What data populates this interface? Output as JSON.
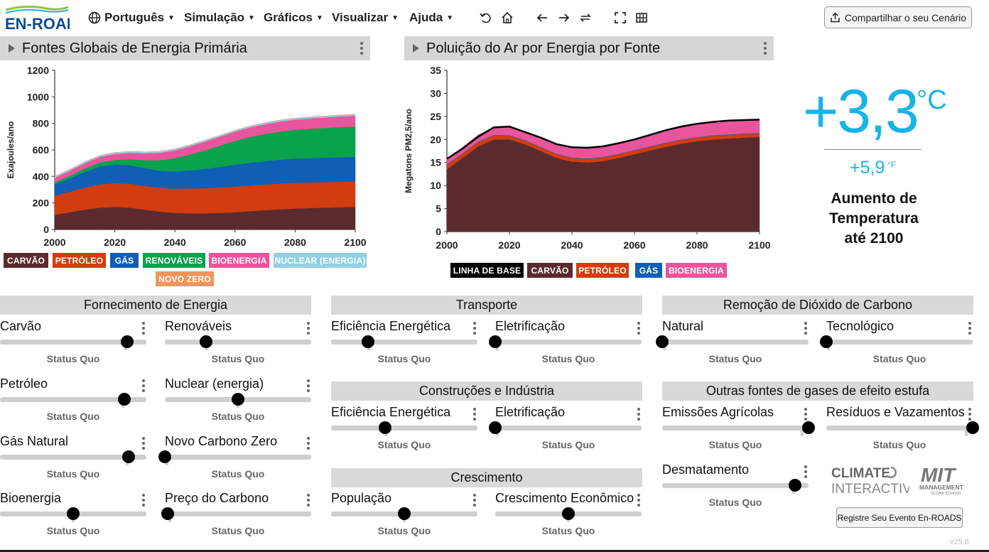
{
  "header": {
    "logo_text": "EN-ROADS",
    "menus": [
      {
        "label": "Português"
      },
      {
        "label": "Simulação"
      },
      {
        "label": "Gráficos"
      },
      {
        "label": "Visualizar"
      },
      {
        "label": "Ajuda"
      }
    ],
    "share_label": "Compartilhar o seu Cenário",
    "icons": [
      "globe-icon",
      "undo-icon",
      "home-icon",
      "back-arrow-icon",
      "forward-arrow-icon",
      "compare-icon",
      "fullscreen-icon",
      "grid-icon",
      "share-icon"
    ]
  },
  "graph1": {
    "title": "Fontes Globais de Energia Primária",
    "chart_data": {
      "type": "area",
      "ylabel": "Exajoules/ano",
      "x": [
        2000,
        2005,
        2010,
        2015,
        2020,
        2025,
        2030,
        2035,
        2040,
        2045,
        2050,
        2055,
        2060,
        2065,
        2070,
        2075,
        2080,
        2085,
        2090,
        2095,
        2100
      ],
      "xticks": [
        "2000",
        "2020",
        "2040",
        "2060",
        "2080",
        "2100"
      ],
      "yticks": [
        "0",
        "200",
        "400",
        "600",
        "800",
        "1000",
        "1200"
      ],
      "ylim": [
        0,
        1200
      ],
      "series": [
        {
          "name": "CARVÃO",
          "color": "#5b2a2e",
          "values": [
            110,
            130,
            150,
            165,
            170,
            165,
            150,
            135,
            125,
            122,
            122,
            125,
            130,
            138,
            145,
            152,
            158,
            162,
            165,
            168,
            170
          ]
        },
        {
          "name": "PETRÓLEO",
          "color": "#d13d0e",
          "values": [
            145,
            155,
            165,
            175,
            180,
            180,
            178,
            178,
            182,
            188,
            190,
            192,
            193,
            195,
            195,
            195,
            194,
            193,
            192,
            192,
            192
          ]
        },
        {
          "name": "GÁS",
          "color": "#0e5fb5",
          "values": [
            85,
            100,
            120,
            135,
            140,
            140,
            135,
            130,
            130,
            135,
            145,
            155,
            165,
            170,
            175,
            180,
            182,
            183,
            184,
            185,
            186
          ]
        },
        {
          "name": "RENOVÁVEIS",
          "color": "#0aa24a",
          "values": [
            15,
            20,
            25,
            30,
            35,
            45,
            60,
            80,
            100,
            120,
            140,
            160,
            180,
            195,
            205,
            212,
            218,
            222,
            225,
            228,
            230
          ]
        },
        {
          "name": "BIOENERGIA",
          "color": "#e8559c",
          "values": [
            35,
            38,
            40,
            42,
            45,
            48,
            52,
            56,
            60,
            63,
            66,
            68,
            70,
            72,
            74,
            76,
            77,
            78,
            79,
            80,
            80
          ]
        },
        {
          "name": "NUCLEAR (ENERGIA)",
          "color": "#8fd0e4",
          "values": [
            10,
            10,
            10,
            10,
            10,
            10,
            10,
            10,
            10,
            10,
            10,
            10,
            10,
            10,
            10,
            10,
            10,
            10,
            10,
            10,
            10
          ]
        },
        {
          "name": "NOVO ZERO",
          "color": "#f0955b",
          "values": [
            0,
            0,
            0,
            0,
            0,
            0,
            0,
            0,
            0,
            0,
            0,
            0,
            0,
            0,
            0,
            0,
            0,
            0,
            0,
            0,
            0
          ]
        }
      ]
    }
  },
  "graph2": {
    "title": "Poluição do Ar por Energia por Fonte",
    "chart_data": {
      "type": "area",
      "ylabel": "Megatons PM2,5/ano",
      "x": [
        2000,
        2005,
        2010,
        2015,
        2020,
        2025,
        2030,
        2035,
        2040,
        2045,
        2050,
        2055,
        2060,
        2065,
        2070,
        2075,
        2080,
        2085,
        2090,
        2095,
        2100
      ],
      "xticks": [
        "2000",
        "2020",
        "2040",
        "2060",
        "2080",
        "2100"
      ],
      "yticks": [
        "0",
        "5",
        "10",
        "15",
        "20",
        "25",
        "30",
        "35"
      ],
      "ylim": [
        0,
        35
      ],
      "baseline": {
        "name": "LINHA DE BASE",
        "color": "#000000",
        "values": [
          15.8,
          18.0,
          20.6,
          22.6,
          22.8,
          21.6,
          20.4,
          19.0,
          18.3,
          18.2,
          18.5,
          19.2,
          20.0,
          21.0,
          22.0,
          22.8,
          23.4,
          23.8,
          24.1,
          24.2,
          24.3
        ]
      },
      "series": [
        {
          "name": "CARVÃO",
          "color": "#5b2a2e",
          "values": [
            13.5,
            16.0,
            18.5,
            20.0,
            20.0,
            19.0,
            17.5,
            16.0,
            15.2,
            15.0,
            15.3,
            16.0,
            16.8,
            17.6,
            18.4,
            19.1,
            19.6,
            20.0,
            20.2,
            20.4,
            20.5
          ]
        },
        {
          "name": "PETRÓLEO",
          "color": "#d13d0e",
          "values": [
            1.0,
            0.9,
            0.9,
            0.9,
            0.8,
            0.8,
            0.8,
            0.8,
            0.8,
            0.8,
            0.8,
            0.8,
            0.8,
            0.8,
            0.8,
            0.8,
            0.8,
            0.8,
            0.8,
            0.8,
            0.8
          ]
        },
        {
          "name": "GÁS",
          "color": "#0e5fb5",
          "values": [
            0.1,
            0.1,
            0.1,
            0.1,
            0.1,
            0.1,
            0.1,
            0.1,
            0.1,
            0.1,
            0.1,
            0.1,
            0.1,
            0.1,
            0.1,
            0.1,
            0.1,
            0.1,
            0.1,
            0.1,
            0.1
          ]
        },
        {
          "name": "BIOENERGIA",
          "color": "#e8559c",
          "values": [
            1.2,
            1.3,
            1.5,
            1.6,
            1.9,
            1.7,
            2.0,
            2.1,
            2.2,
            2.3,
            2.3,
            2.3,
            2.3,
            2.6,
            2.7,
            2.8,
            3.0,
            2.9,
            3.0,
            2.9,
            2.9
          ]
        }
      ]
    }
  },
  "temperature": {
    "value_c": "+3,3",
    "unit_c": "°C",
    "value_f": "+5,9",
    "unit_f": "°F",
    "label": "Aumento de Temperatura até 2100"
  },
  "sections": {
    "supply": "Fornecimento de Energia",
    "transport": "Transporte",
    "buildings": "Construções e Indústria",
    "growth": "Crescimento",
    "removal": "Remoção de Dióxido de Carbono",
    "other_gases": "Outras fontes de gases de efeito estufa"
  },
  "controls": {
    "coal": {
      "label": "Carvão",
      "status": "Status Quo",
      "position": 0.87
    },
    "renewables": {
      "label": "Renováveis",
      "status": "Status Quo",
      "position": 0.28
    },
    "oil": {
      "label": "Petróleo",
      "status": "Status Quo",
      "position": 0.85
    },
    "nuclear": {
      "label": "Nuclear (energia)",
      "status": "Status Quo",
      "position": 0.5
    },
    "natural_gas": {
      "label": "Gás Natural",
      "status": "Status Quo",
      "position": 0.88
    },
    "new_zero_carbon": {
      "label": "Novo Carbono Zero",
      "status": "Status Quo",
      "position": 0.0
    },
    "bioenergy": {
      "label": "Bioenergia",
      "status": "Status Quo",
      "position": 0.5
    },
    "carbon_price": {
      "label": "Preço do Carbono",
      "status": "Status Quo",
      "position": 0.02
    },
    "transport_efficiency": {
      "label": "Eficiência Energética",
      "status": "Status Quo",
      "position": 0.25
    },
    "transport_electrification": {
      "label": "Eletrificação",
      "status": "Status Quo",
      "position": 0.0
    },
    "buildings_efficiency": {
      "label": "Eficiência Energética",
      "status": "Status Quo",
      "position": 0.37
    },
    "buildings_electrification": {
      "label": "Eletrificação",
      "status": "Status Quo",
      "position": 0.0
    },
    "population": {
      "label": "População",
      "status": "Status Quo",
      "position": 0.5
    },
    "economic_growth": {
      "label": "Crescimento Econômico",
      "status": "Status Quo",
      "position": 0.5
    },
    "natural_removal": {
      "label": "Natural",
      "status": "Status Quo",
      "position": 0.0
    },
    "tech_removal": {
      "label": "Tecnológico",
      "status": "Status Quo",
      "position": 0.0
    },
    "agri_emissions": {
      "label": "Emissões Agrícolas",
      "status": "Status Quo",
      "position": 1.0
    },
    "waste_leakage": {
      "label": "Resíduos e Vazamentos",
      "status": "Status Quo",
      "position": 1.0
    },
    "deforestation": {
      "label": "Desmatamento",
      "status": "Status Quo",
      "position": 0.91
    }
  },
  "footer": {
    "ci_logo_top": "CLIMATE",
    "ci_logo_bottom": "INTERACTIVE",
    "mit_logo_top": "MIT",
    "mit_logo_mid": "MANAGEMENT",
    "mit_logo_bottom": "SLOAN SCHOOL",
    "register_label": "Registre Seu Evento En-ROADS",
    "version": "v25.6"
  },
  "colors": {
    "accent": "#19b3e6",
    "header_bar": "#d6d6d6"
  }
}
